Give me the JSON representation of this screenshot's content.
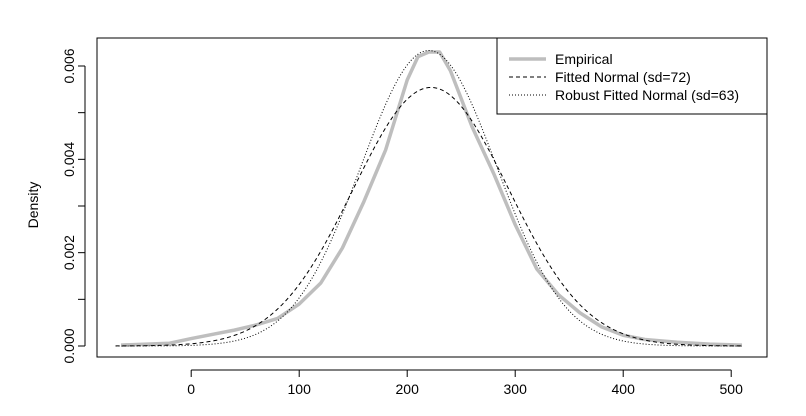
{
  "chart_data": {
    "type": "line",
    "title": "",
    "xlabel": "",
    "ylabel": "Density",
    "xlim": [
      -70,
      520
    ],
    "ylim": [
      0,
      0.0064
    ],
    "x_ticks": [
      0,
      100,
      200,
      300,
      400,
      500
    ],
    "x_tick_labels": [
      "0",
      "100",
      "200",
      "300",
      "400",
      "500"
    ],
    "y_ticks": [
      0,
      0.002,
      0.004,
      0.006
    ],
    "y_tick_labels": [
      "0.000",
      "0.002",
      "0.004",
      "0.006"
    ],
    "grid": false,
    "legend": {
      "position": "top-right"
    },
    "series": [
      {
        "name": "Empirical",
        "style": "solid-thick",
        "color": "#bebebe",
        "x": [
          -65,
          -20,
          0,
          20,
          40,
          60,
          80,
          100,
          120,
          140,
          160,
          180,
          200,
          210,
          220,
          230,
          240,
          260,
          280,
          300,
          320,
          340,
          360,
          380,
          400,
          420,
          450,
          480,
          510
        ],
        "y": [
          2e-05,
          6e-05,
          0.00016,
          0.00025,
          0.00034,
          0.00045,
          0.00059,
          0.0009,
          0.00135,
          0.0021,
          0.0031,
          0.0042,
          0.0057,
          0.0062,
          0.0063,
          0.0063,
          0.0059,
          0.0047,
          0.0037,
          0.0026,
          0.00165,
          0.0011,
          0.00071,
          0.00041,
          0.00023,
          0.00014,
          8e-05,
          4e-05,
          2e-05
        ]
      },
      {
        "name": "Fitted Normal (sd=72)",
        "style": "dashed",
        "color": "#000000",
        "mean": 222,
        "sd": 72,
        "x_range": [
          -70,
          510
        ]
      },
      {
        "name": "Robust Fitted Normal (sd=63)",
        "style": "dotted",
        "color": "#000000",
        "mean": 220,
        "sd": 63,
        "x_range": [
          -70,
          510
        ]
      }
    ]
  }
}
